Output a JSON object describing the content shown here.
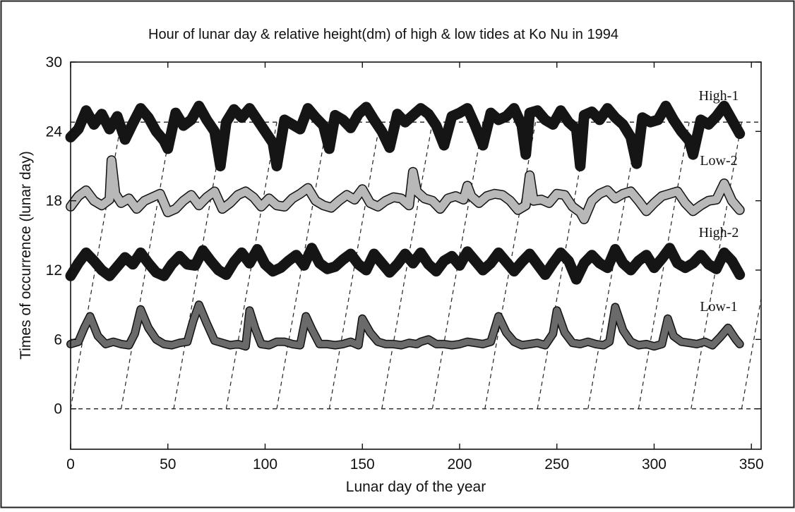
{
  "chart_data": {
    "type": "line",
    "title": "Hour of lunar day & relative height(dm) of high & low tides at Ko Nu in 1994",
    "xlabel": "Lunar day of the year",
    "ylabel": "Times of occurrence (lunar day)",
    "xlim": [
      0,
      355
    ],
    "ylim": [
      -3.5,
      30
    ],
    "xticks": [
      0,
      50,
      100,
      150,
      200,
      250,
      300,
      350
    ],
    "yticks": [
      0,
      6,
      12,
      18,
      24,
      30
    ],
    "grid": false,
    "reference_lines": [
      {
        "y": 0,
        "style": "dashed"
      },
      {
        "y": 24.8,
        "style": "dashed"
      }
    ],
    "diagonal_crossings_x": [
      0,
      26,
      53,
      80,
      106,
      133,
      160,
      186,
      213,
      240,
      266,
      292,
      319,
      345
    ],
    "series": [
      {
        "name": "High-1",
        "style": "thick-dark-band",
        "x": [
          0,
          4,
          8,
          12,
          16,
          20,
          24,
          28,
          32,
          36,
          40,
          44,
          48,
          50,
          54,
          58,
          62,
          66,
          70,
          74,
          77,
          80,
          84,
          88,
          92,
          96,
          100,
          104,
          106,
          110,
          114,
          118,
          122,
          126,
          130,
          133,
          136,
          140,
          144,
          148,
          152,
          156,
          160,
          164,
          168,
          172,
          176,
          180,
          184,
          188,
          192,
          196,
          200,
          204,
          208,
          212,
          216,
          220,
          224,
          228,
          232,
          234,
          236,
          240,
          244,
          248,
          252,
          256,
          260,
          262,
          264,
          268,
          272,
          276,
          280,
          284,
          288,
          291,
          294,
          298,
          302,
          306,
          310,
          314,
          318,
          320,
          324,
          328,
          332,
          336,
          340,
          344
        ],
        "values": [
          23.5,
          24.2,
          25.8,
          24.6,
          25.5,
          24.2,
          25.3,
          23.3,
          24.7,
          26.0,
          25.2,
          24.0,
          23.2,
          22.5,
          25.6,
          24.5,
          25.0,
          26.2,
          25.0,
          24.0,
          21.0,
          24.8,
          25.9,
          25.2,
          26.0,
          25.0,
          24.0,
          23.0,
          21.0,
          25.0,
          24.6,
          24.2,
          26.0,
          25.2,
          24.5,
          22.5,
          25.4,
          25.0,
          24.3,
          25.5,
          26.1,
          25.0,
          24.0,
          22.6,
          25.5,
          24.8,
          25.4,
          26.0,
          25.5,
          24.5,
          22.8,
          25.3,
          25.6,
          26.0,
          24.5,
          22.8,
          25.6,
          25.0,
          25.3,
          26.0,
          24.5,
          22.0,
          25.6,
          25.8,
          25.0,
          24.6,
          25.8,
          24.8,
          24.2,
          21.0,
          25.4,
          25.7,
          25.0,
          26.0,
          25.2,
          24.6,
          23.5,
          21.2,
          25.2,
          24.8,
          25.0,
          26.2,
          25.0,
          24.0,
          23.2,
          22.0,
          25.0,
          24.6,
          25.3,
          26.2,
          25.0,
          23.8
        ]
      },
      {
        "name": "Low-2",
        "style": "thin-outline-band",
        "x": [
          0,
          4,
          8,
          12,
          16,
          20,
          21,
          23,
          26,
          30,
          34,
          38,
          42,
          46,
          50,
          54,
          58,
          62,
          66,
          70,
          74,
          78,
          82,
          86,
          90,
          94,
          98,
          102,
          106,
          110,
          114,
          118,
          122,
          126,
          130,
          134,
          138,
          142,
          146,
          150,
          154,
          158,
          162,
          166,
          170,
          174,
          176,
          178,
          182,
          186,
          190,
          194,
          198,
          202,
          204,
          206,
          210,
          214,
          218,
          222,
          226,
          230,
          234,
          236,
          238,
          242,
          246,
          250,
          254,
          258,
          262,
          264,
          268,
          272,
          276,
          280,
          284,
          288,
          292,
          296,
          300,
          304,
          308,
          312,
          316,
          320,
          324,
          328,
          332,
          336,
          340,
          344
        ],
        "values": [
          17.5,
          18.4,
          18.9,
          18.0,
          17.6,
          18.1,
          21.5,
          18.6,
          17.8,
          18.2,
          17.3,
          18.0,
          18.3,
          18.6,
          17.0,
          17.3,
          18.0,
          18.5,
          17.6,
          18.3,
          18.8,
          17.3,
          17.8,
          18.5,
          18.8,
          18.3,
          17.5,
          18.2,
          17.6,
          17.5,
          18.2,
          18.6,
          19.1,
          18.0,
          17.6,
          17.4,
          18.0,
          18.5,
          18.1,
          19.0,
          17.8,
          17.5,
          18.0,
          18.3,
          18.2,
          17.6,
          20.5,
          18.8,
          18.2,
          18.0,
          17.3,
          18.2,
          18.4,
          18.1,
          19.3,
          18.4,
          17.8,
          18.4,
          18.6,
          18.5,
          18.0,
          17.2,
          17.6,
          20.2,
          18.0,
          18.1,
          17.8,
          18.6,
          18.5,
          17.5,
          17.0,
          16.4,
          18.0,
          18.6,
          18.9,
          18.2,
          18.6,
          18.8,
          18.0,
          17.1,
          17.8,
          18.4,
          18.6,
          18.8,
          17.8,
          17.1,
          17.6,
          18.0,
          18.1,
          19.5,
          18.0,
          17.2
        ]
      },
      {
        "name": "High-2",
        "style": "thick-dark-band",
        "x": [
          0,
          4,
          8,
          12,
          16,
          20,
          24,
          28,
          32,
          36,
          40,
          44,
          48,
          52,
          56,
          60,
          64,
          68,
          72,
          76,
          80,
          84,
          88,
          92,
          96,
          100,
          104,
          108,
          112,
          116,
          120,
          124,
          128,
          132,
          136,
          140,
          144,
          148,
          152,
          156,
          160,
          164,
          168,
          172,
          176,
          180,
          184,
          188,
          192,
          196,
          200,
          204,
          208,
          212,
          216,
          220,
          224,
          228,
          232,
          236,
          240,
          244,
          248,
          252,
          256,
          260,
          264,
          268,
          272,
          276,
          280,
          284,
          288,
          292,
          296,
          300,
          304,
          308,
          312,
          316,
          320,
          324,
          328,
          332,
          336,
          340,
          344
        ],
        "values": [
          11.5,
          12.6,
          13.5,
          12.8,
          12.0,
          11.5,
          12.3,
          13.1,
          12.5,
          13.5,
          12.6,
          11.8,
          11.5,
          12.5,
          13.2,
          12.5,
          12.4,
          13.7,
          12.8,
          12.0,
          11.6,
          12.7,
          13.5,
          12.6,
          13.8,
          12.5,
          11.9,
          12.2,
          12.8,
          13.3,
          12.4,
          13.9,
          12.6,
          12.1,
          12.3,
          12.9,
          13.4,
          12.5,
          12.0,
          13.4,
          12.6,
          11.8,
          12.5,
          13.4,
          12.6,
          13.5,
          12.5,
          11.9,
          12.8,
          13.2,
          12.4,
          13.6,
          12.8,
          12.0,
          12.6,
          13.5,
          12.7,
          11.9,
          12.7,
          13.4,
          12.5,
          11.6,
          12.6,
          13.5,
          12.8,
          11.2,
          12.6,
          13.3,
          12.6,
          12.2,
          13.8,
          12.6,
          12.0,
          12.8,
          13.3,
          12.2,
          13.0,
          13.9,
          12.6,
          12.2,
          12.6,
          13.3,
          12.5,
          12.1,
          13.5,
          12.8,
          11.6
        ]
      },
      {
        "name": "Low-1",
        "style": "medium-gray-band",
        "x": [
          0,
          4,
          7,
          10,
          14,
          18,
          22,
          26,
          30,
          33,
          36,
          40,
          44,
          48,
          52,
          56,
          60,
          63,
          66,
          70,
          74,
          78,
          82,
          86,
          90,
          92,
          95,
          98,
          102,
          106,
          110,
          114,
          118,
          121,
          124,
          128,
          132,
          136,
          140,
          144,
          148,
          150,
          154,
          158,
          162,
          166,
          170,
          174,
          178,
          180,
          184,
          188,
          192,
          196,
          200,
          204,
          208,
          212,
          216,
          220,
          224,
          228,
          232,
          236,
          240,
          244,
          248,
          250,
          254,
          258,
          262,
          266,
          270,
          274,
          277,
          280,
          284,
          288,
          292,
          296,
          300,
          304,
          307,
          310,
          314,
          318,
          322,
          326,
          330,
          334,
          338,
          342,
          344
        ],
        "values": [
          5.6,
          5.8,
          7.0,
          8.0,
          6.3,
          5.6,
          5.8,
          5.6,
          5.5,
          6.5,
          8.6,
          7.0,
          6.0,
          5.6,
          5.5,
          5.7,
          5.8,
          7.6,
          9.0,
          7.4,
          5.9,
          5.7,
          5.5,
          5.6,
          5.4,
          8.5,
          6.9,
          5.6,
          5.5,
          5.8,
          5.8,
          5.6,
          5.5,
          8.0,
          6.9,
          5.6,
          5.6,
          5.5,
          5.6,
          5.8,
          5.5,
          7.8,
          6.6,
          5.8,
          5.6,
          5.6,
          5.5,
          5.7,
          5.6,
          5.8,
          6.0,
          5.6,
          5.6,
          5.5,
          5.6,
          5.8,
          5.7,
          5.6,
          5.8,
          8.0,
          6.6,
          5.8,
          5.5,
          5.6,
          5.7,
          5.5,
          6.5,
          8.5,
          6.6,
          5.7,
          5.6,
          5.8,
          5.6,
          5.5,
          5.8,
          8.8,
          6.8,
          5.8,
          5.5,
          5.6,
          5.4,
          5.6,
          7.8,
          6.3,
          5.8,
          5.7,
          5.6,
          5.8,
          5.5,
          6.2,
          7.0,
          6.0,
          5.6
        ]
      }
    ]
  }
}
